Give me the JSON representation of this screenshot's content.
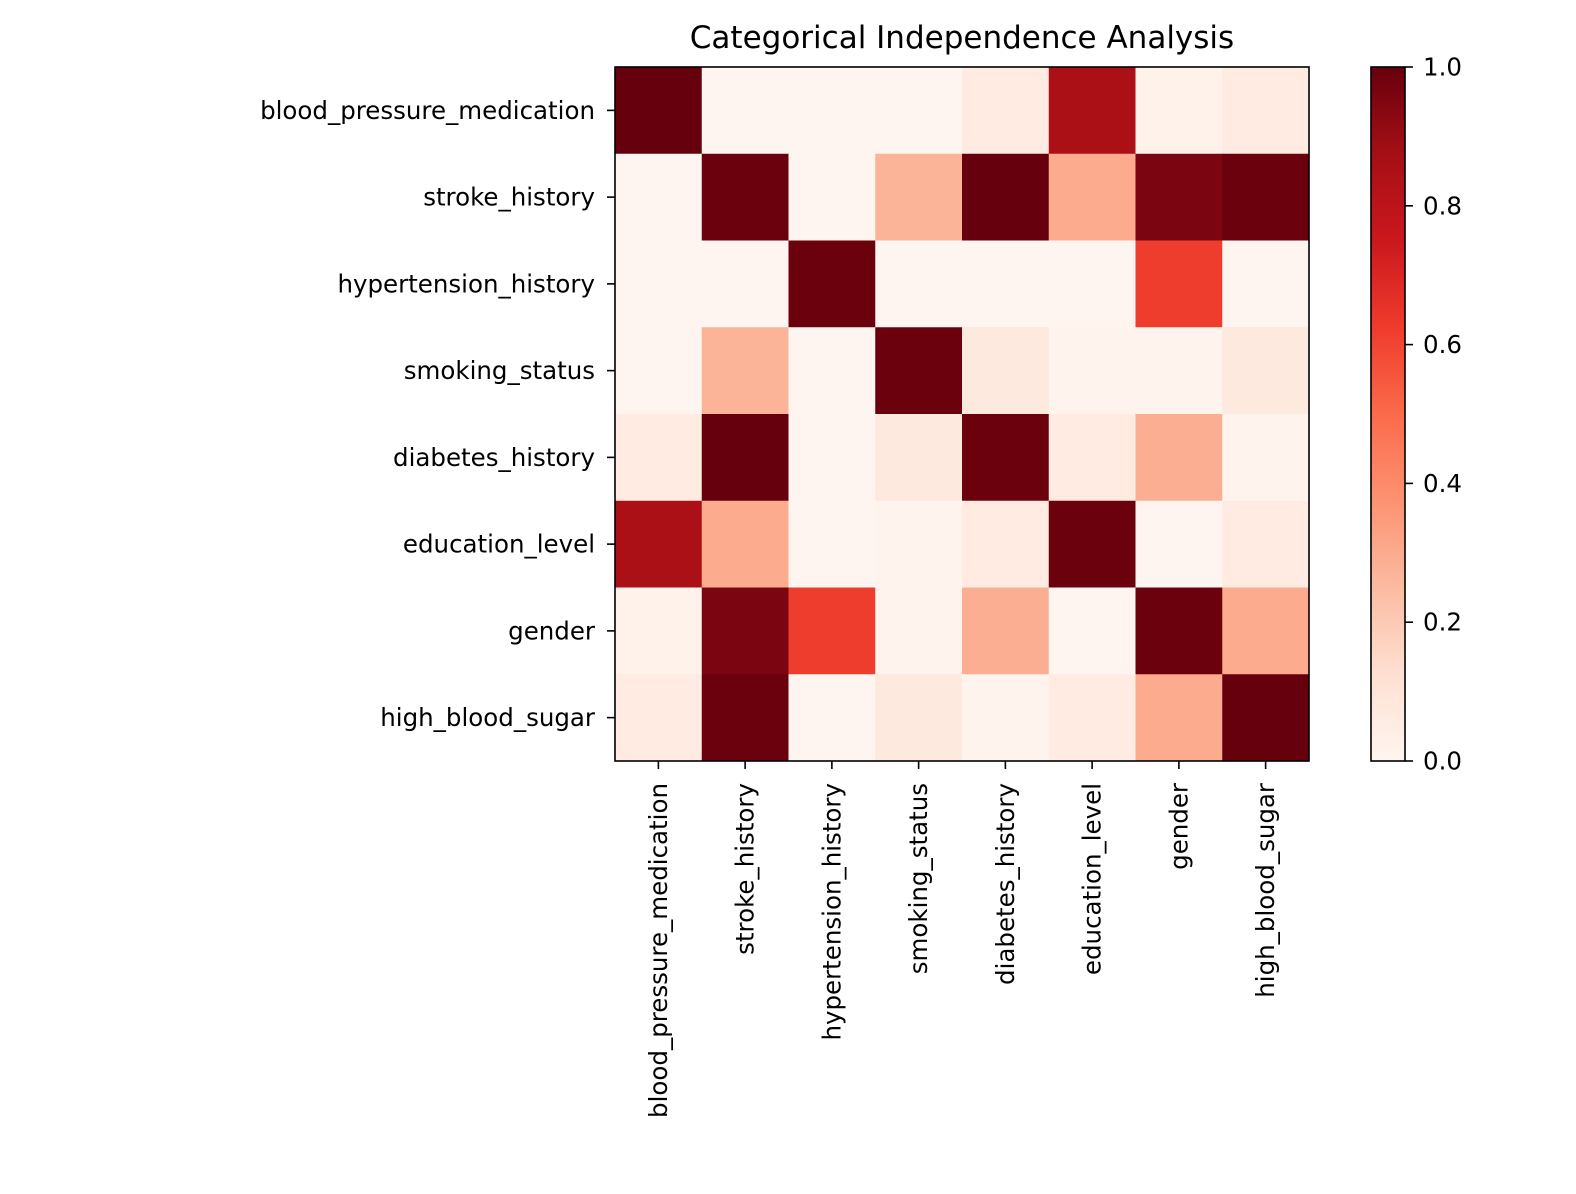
{
  "chart_data": {
    "type": "heatmap",
    "title": "Categorical Independence Analysis",
    "xlabel": "",
    "ylabel": "",
    "x_categories": [
      "blood_pressure_medication",
      "stroke_history",
      "hypertension_history",
      "smoking_status",
      "diabetes_history",
      "education_level",
      "gender",
      "high_blood_sugar"
    ],
    "y_categories": [
      "blood_pressure_medication",
      "stroke_history",
      "hypertension_history",
      "smoking_status",
      "diabetes_history",
      "education_level",
      "gender",
      "high_blood_sugar"
    ],
    "values": [
      [
        1.0,
        0.0,
        0.0,
        0.0,
        0.06,
        0.86,
        0.02,
        0.06
      ],
      [
        0.0,
        0.99,
        0.0,
        0.27,
        1.0,
        0.3,
        0.96,
        0.99
      ],
      [
        0.0,
        0.0,
        0.99,
        0.0,
        0.0,
        0.0,
        0.62,
        0.0
      ],
      [
        0.0,
        0.27,
        0.0,
        0.99,
        0.07,
        0.01,
        0.01,
        0.07
      ],
      [
        0.06,
        1.0,
        0.0,
        0.07,
        0.99,
        0.06,
        0.29,
        0.01
      ],
      [
        0.86,
        0.3,
        0.0,
        0.01,
        0.06,
        0.99,
        0.0,
        0.06
      ],
      [
        0.02,
        0.96,
        0.62,
        0.01,
        0.29,
        0.0,
        0.99,
        0.3
      ],
      [
        0.06,
        0.99,
        0.0,
        0.07,
        0.01,
        0.06,
        0.3,
        1.0
      ]
    ],
    "colorbar": {
      "min": 0.0,
      "max": 1.0,
      "ticks": [
        "0.0",
        "0.2",
        "0.4",
        "0.6",
        "0.8",
        "1.0"
      ],
      "colormap": "Reds",
      "stops": [
        "#fff5f0",
        "#fee0d2",
        "#fcbba1",
        "#fc9272",
        "#fb6a4a",
        "#ef3b2c",
        "#cb181d",
        "#a50f15",
        "#67000d"
      ]
    },
    "grid": false
  }
}
